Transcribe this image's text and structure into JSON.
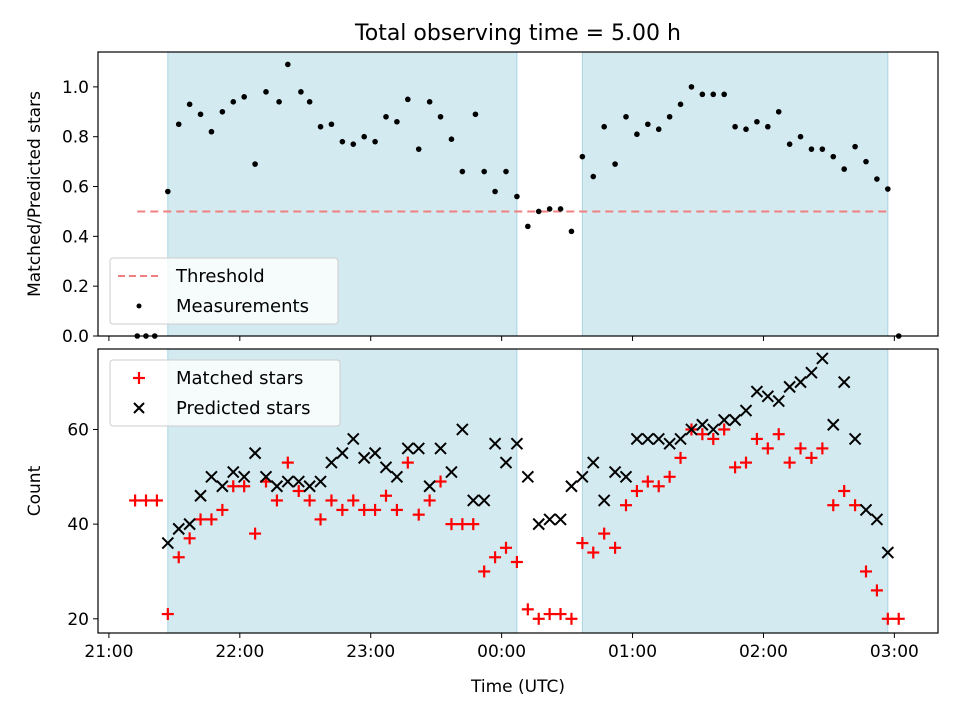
{
  "chart_data": [
    {
      "type": "scatter",
      "title": "Total observing time = 5.00 h",
      "ylabel": "Matched/Predicted stars",
      "xlabel": "",
      "ylim": [
        0.0,
        1.14
      ],
      "yticks": [
        "0.0",
        "0.2",
        "0.4",
        "0.6",
        "0.8",
        "1.0"
      ],
      "shaded_intervals": [
        [
          "21:27",
          "00:07"
        ],
        [
          "00:37",
          "02:57"
        ]
      ],
      "legend": {
        "position": "lower-left",
        "entries": [
          "Threshold",
          "Measurements"
        ]
      },
      "threshold": {
        "name": "Threshold",
        "value": 0.5,
        "x_range": [
          "21:13",
          "02:58"
        ],
        "color": "#f08080"
      },
      "series": [
        {
          "name": "Measurements",
          "color": "#000000",
          "points": [
            [
              "21:13",
              0.0
            ],
            [
              "21:17",
              0.0
            ],
            [
              "21:21",
              0.0
            ],
            [
              "21:27",
              0.58
            ],
            [
              "21:32",
              0.85
            ],
            [
              "21:37",
              0.93
            ],
            [
              "21:42",
              0.89
            ],
            [
              "21:47",
              0.82
            ],
            [
              "21:52",
              0.9
            ],
            [
              "21:57",
              0.94
            ],
            [
              "22:02",
              0.96
            ],
            [
              "22:07",
              0.69
            ],
            [
              "22:12",
              0.98
            ],
            [
              "22:18",
              0.94
            ],
            [
              "22:22",
              1.09
            ],
            [
              "22:28",
              0.98
            ],
            [
              "22:32",
              0.94
            ],
            [
              "22:37",
              0.84
            ],
            [
              "22:42",
              0.85
            ],
            [
              "22:47",
              0.78
            ],
            [
              "22:52",
              0.77
            ],
            [
              "22:57",
              0.8
            ],
            [
              "23:02",
              0.78
            ],
            [
              "23:07",
              0.88
            ],
            [
              "23:12",
              0.86
            ],
            [
              "23:17",
              0.95
            ],
            [
              "23:22",
              0.75
            ],
            [
              "23:27",
              0.94
            ],
            [
              "23:32",
              0.88
            ],
            [
              "23:37",
              0.79
            ],
            [
              "23:42",
              0.66
            ],
            [
              "23:48",
              0.89
            ],
            [
              "23:52",
              0.66
            ],
            [
              "23:57",
              0.58
            ],
            [
              "00:02",
              0.66
            ],
            [
              "00:07",
              0.56
            ],
            [
              "00:12",
              0.44
            ],
            [
              "00:17",
              0.5
            ],
            [
              "00:22",
              0.51
            ],
            [
              "00:27",
              0.51
            ],
            [
              "00:32",
              0.42
            ],
            [
              "00:37",
              0.72
            ],
            [
              "00:42",
              0.64
            ],
            [
              "00:47",
              0.84
            ],
            [
              "00:52",
              0.69
            ],
            [
              "00:57",
              0.88
            ],
            [
              "01:02",
              0.81
            ],
            [
              "01:07",
              0.85
            ],
            [
              "01:12",
              0.83
            ],
            [
              "01:17",
              0.88
            ],
            [
              "01:22",
              0.93
            ],
            [
              "01:27",
              1.0
            ],
            [
              "01:32",
              0.97
            ],
            [
              "01:37",
              0.97
            ],
            [
              "01:42",
              0.97
            ],
            [
              "01:47",
              0.84
            ],
            [
              "01:52",
              0.83
            ],
            [
              "01:57",
              0.86
            ],
            [
              "02:02",
              0.84
            ],
            [
              "02:07",
              0.9
            ],
            [
              "02:12",
              0.77
            ],
            [
              "02:17",
              0.8
            ],
            [
              "02:22",
              0.75
            ],
            [
              "02:27",
              0.75
            ],
            [
              "02:32",
              0.72
            ],
            [
              "02:37",
              0.67
            ],
            [
              "02:42",
              0.76
            ],
            [
              "02:47",
              0.7
            ],
            [
              "02:52",
              0.63
            ],
            [
              "02:57",
              0.59
            ],
            [
              "03:02",
              0.0
            ]
          ]
        }
      ]
    },
    {
      "type": "scatter",
      "title": "",
      "ylabel": "Count",
      "xlabel": "Time (UTC)",
      "ylim": [
        17,
        77
      ],
      "yticks": [
        "20",
        "40",
        "60"
      ],
      "xlim": [
        "20:55",
        "03:20"
      ],
      "xticks": [
        "21:00",
        "22:00",
        "23:00",
        "00:00",
        "01:00",
        "02:00",
        "03:00"
      ],
      "shaded_intervals": [
        [
          "21:27",
          "00:07"
        ],
        [
          "00:37",
          "02:57"
        ]
      ],
      "legend": {
        "position": "upper-left",
        "entries": [
          "Matched stars",
          "Predicted stars"
        ]
      },
      "series": [
        {
          "name": "Matched stars",
          "marker": "+",
          "color": "#ff0000",
          "points": [
            [
              "21:12",
              45
            ],
            [
              "21:17",
              45
            ],
            [
              "21:22",
              45
            ],
            [
              "21:27",
              21
            ],
            [
              "21:32",
              33
            ],
            [
              "21:37",
              37
            ],
            [
              "21:42",
              41
            ],
            [
              "21:47",
              41
            ],
            [
              "21:52",
              43
            ],
            [
              "21:57",
              48
            ],
            [
              "22:02",
              48
            ],
            [
              "22:07",
              38
            ],
            [
              "22:12",
              49
            ],
            [
              "22:17",
              45
            ],
            [
              "22:22",
              53
            ],
            [
              "22:27",
              47
            ],
            [
              "22:32",
              45
            ],
            [
              "22:37",
              41
            ],
            [
              "22:42",
              45
            ],
            [
              "22:47",
              43
            ],
            [
              "22:52",
              45
            ],
            [
              "22:57",
              43
            ],
            [
              "23:02",
              43
            ],
            [
              "23:07",
              46
            ],
            [
              "23:12",
              43
            ],
            [
              "23:17",
              53
            ],
            [
              "23:22",
              42
            ],
            [
              "23:27",
              45
            ],
            [
              "23:32",
              49
            ],
            [
              "23:37",
              40
            ],
            [
              "23:42",
              40
            ],
            [
              "23:47",
              40
            ],
            [
              "23:52",
              30
            ],
            [
              "23:57",
              33
            ],
            [
              "00:02",
              35
            ],
            [
              "00:07",
              32
            ],
            [
              "00:12",
              22
            ],
            [
              "00:17",
              20
            ],
            [
              "00:22",
              21
            ],
            [
              "00:27",
              21
            ],
            [
              "00:32",
              20
            ],
            [
              "00:37",
              36
            ],
            [
              "00:42",
              34
            ],
            [
              "00:47",
              38
            ],
            [
              "00:52",
              35
            ],
            [
              "00:57",
              44
            ],
            [
              "01:02",
              47
            ],
            [
              "01:07",
              49
            ],
            [
              "01:12",
              48
            ],
            [
              "01:17",
              50
            ],
            [
              "01:22",
              54
            ],
            [
              "01:27",
              60
            ],
            [
              "01:32",
              59
            ],
            [
              "01:37",
              58
            ],
            [
              "01:42",
              60
            ],
            [
              "01:47",
              52
            ],
            [
              "01:52",
              53
            ],
            [
              "01:57",
              58
            ],
            [
              "02:02",
              56
            ],
            [
              "02:07",
              59
            ],
            [
              "02:12",
              53
            ],
            [
              "02:17",
              56
            ],
            [
              "02:22",
              54
            ],
            [
              "02:27",
              56
            ],
            [
              "02:32",
              44
            ],
            [
              "02:37",
              47
            ],
            [
              "02:42",
              44
            ],
            [
              "02:47",
              30
            ],
            [
              "02:52",
              26
            ],
            [
              "02:57",
              20
            ],
            [
              "03:02",
              20
            ]
          ]
        },
        {
          "name": "Predicted stars",
          "marker": "x",
          "color": "#000000",
          "points": [
            [
              "21:27",
              36
            ],
            [
              "21:32",
              39
            ],
            [
              "21:37",
              40
            ],
            [
              "21:42",
              46
            ],
            [
              "21:47",
              50
            ],
            [
              "21:52",
              48
            ],
            [
              "21:57",
              51
            ],
            [
              "22:02",
              50
            ],
            [
              "22:07",
              55
            ],
            [
              "22:12",
              50
            ],
            [
              "22:17",
              48
            ],
            [
              "22:22",
              49
            ],
            [
              "22:27",
              49
            ],
            [
              "22:32",
              48
            ],
            [
              "22:37",
              49
            ],
            [
              "22:42",
              53
            ],
            [
              "22:47",
              55
            ],
            [
              "22:52",
              58
            ],
            [
              "22:57",
              54
            ],
            [
              "23:02",
              55
            ],
            [
              "23:07",
              52
            ],
            [
              "23:12",
              50
            ],
            [
              "23:17",
              56
            ],
            [
              "23:22",
              56
            ],
            [
              "23:27",
              48
            ],
            [
              "23:32",
              56
            ],
            [
              "23:37",
              51
            ],
            [
              "23:42",
              60
            ],
            [
              "23:47",
              45
            ],
            [
              "23:52",
              45
            ],
            [
              "23:57",
              57
            ],
            [
              "00:02",
              53
            ],
            [
              "00:07",
              57
            ],
            [
              "00:12",
              50
            ],
            [
              "00:17",
              40
            ],
            [
              "00:22",
              41
            ],
            [
              "00:27",
              41
            ],
            [
              "00:32",
              48
            ],
            [
              "00:37",
              50
            ],
            [
              "00:42",
              53
            ],
            [
              "00:47",
              45
            ],
            [
              "00:52",
              51
            ],
            [
              "00:57",
              50
            ],
            [
              "01:02",
              58
            ],
            [
              "01:07",
              58
            ],
            [
              "01:12",
              58
            ],
            [
              "01:17",
              57
            ],
            [
              "01:22",
              58
            ],
            [
              "01:27",
              60
            ],
            [
              "01:32",
              61
            ],
            [
              "01:37",
              60
            ],
            [
              "01:42",
              62
            ],
            [
              "01:47",
              62
            ],
            [
              "01:52",
              64
            ],
            [
              "01:57",
              68
            ],
            [
              "02:02",
              67
            ],
            [
              "02:07",
              66
            ],
            [
              "02:12",
              69
            ],
            [
              "02:17",
              70
            ],
            [
              "02:22",
              72
            ],
            [
              "02:27",
              75
            ],
            [
              "02:32",
              61
            ],
            [
              "02:37",
              70
            ],
            [
              "02:42",
              58
            ],
            [
              "02:47",
              43
            ],
            [
              "02:52",
              41
            ],
            [
              "02:57",
              34
            ]
          ]
        }
      ]
    }
  ],
  "colors": {
    "shade": "#d3eaf0",
    "shade_edge": "#a9d6e5",
    "threshold": "#f08080",
    "matched": "#ff0000",
    "predicted": "#000000"
  }
}
